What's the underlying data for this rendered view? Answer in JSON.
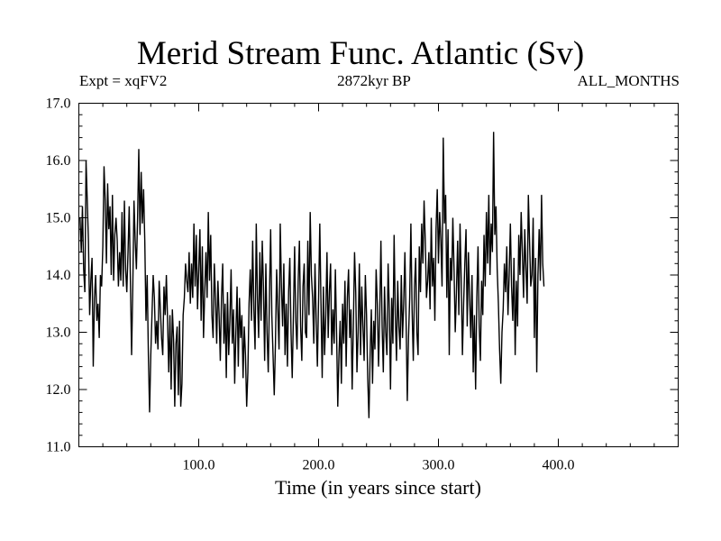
{
  "chart_data": {
    "type": "line",
    "title": "Merid Stream Func. Atlantic (Sv)",
    "subtitle_left": "Expt = xqFV2",
    "subtitle_center": "2872kyr BP",
    "subtitle_right": "ALL_MONTHS",
    "xlabel": "Time (in years since start)",
    "ylabel": "",
    "xlim": [
      0,
      500
    ],
    "ylim": [
      11.0,
      17.0
    ],
    "x_ticks": [
      100,
      200,
      300,
      400
    ],
    "x_tick_labels": [
      "100.0",
      "200.0",
      "300.0",
      "400.0"
    ],
    "y_ticks": [
      11,
      12,
      13,
      14,
      15,
      16,
      17
    ],
    "y_tick_labels": [
      "11.0",
      "12.0",
      "13.0",
      "14.0",
      "15.0",
      "16.0",
      "17.0"
    ],
    "grid": false,
    "series": [
      {
        "name": "Merid Stream Func. Atlantic",
        "color": "#000000",
        "x_start": 1,
        "x_step": 1,
        "values": [
          15.0,
          14.4,
          15.2,
          14.1,
          13.7,
          16.0,
          15.3,
          14.6,
          13.3,
          13.9,
          14.3,
          12.4,
          13.6,
          14.0,
          13.2,
          13.5,
          12.9,
          14.0,
          13.8,
          14.5,
          15.9,
          15.3,
          14.2,
          15.6,
          14.8,
          15.2,
          14.0,
          15.4,
          13.9,
          14.7,
          15.0,
          14.6,
          13.8,
          14.4,
          13.9,
          15.1,
          13.8,
          15.3,
          14.1,
          13.7,
          14.4,
          15.2,
          13.9,
          12.6,
          13.8,
          15.3,
          14.6,
          14.1,
          15.0,
          16.2,
          14.7,
          15.8,
          14.9,
          15.5,
          14.6,
          13.2,
          14.0,
          12.6,
          11.6,
          12.6,
          13.3,
          14.0,
          13.6,
          12.8,
          13.2,
          12.7,
          13.9,
          13.4,
          12.9,
          12.6,
          13.8,
          13.3,
          14.0,
          13.2,
          12.3,
          13.3,
          12.0,
          13.4,
          12.9,
          11.7,
          12.8,
          13.1,
          11.9,
          13.2,
          11.7,
          12.1,
          13.3,
          13.6,
          14.2,
          13.9,
          13.7,
          14.4,
          13.5,
          14.2,
          13.6,
          14.9,
          13.8,
          14.7,
          13.4,
          14.1,
          14.8,
          13.2,
          14.5,
          12.9,
          13.7,
          14.4,
          13.6,
          15.1,
          13.9,
          14.7,
          13.3,
          12.9,
          14.2,
          13.6,
          12.8,
          13.9,
          13.3,
          12.5,
          13.6,
          14.2,
          12.8,
          13.5,
          12.2,
          13.7,
          12.6,
          13.2,
          14.1,
          12.8,
          13.4,
          12.1,
          13.0,
          13.8,
          12.4,
          13.6,
          12.9,
          13.3,
          12.2,
          13.1,
          12.6,
          11.7,
          12.3,
          13.5,
          14.1,
          13.2,
          14.6,
          13.4,
          12.7,
          14.9,
          13.6,
          12.9,
          14.4,
          13.2,
          14.6,
          13.8,
          12.5,
          14.2,
          13.0,
          12.3,
          13.6,
          14.8,
          13.3,
          12.6,
          11.9,
          12.8,
          14.1,
          13.4,
          12.7,
          14.9,
          13.8,
          13.1,
          14.2,
          12.6,
          13.5,
          12.4,
          13.7,
          14.3,
          13.0,
          12.2,
          13.3,
          14.5,
          13.2,
          12.7,
          13.9,
          14.6,
          13.1,
          12.5,
          13.8,
          14.2,
          13.0,
          12.9,
          14.6,
          13.3,
          15.1,
          14.0,
          13.6,
          12.8,
          14.2,
          13.2,
          12.4,
          13.6,
          14.9,
          13.5,
          12.2,
          13.8,
          12.6,
          13.3,
          14.4,
          12.9,
          13.7,
          14.2,
          12.6,
          13.4,
          12.8,
          14.1,
          13.0,
          11.7,
          12.6,
          13.2,
          12.1,
          13.5,
          12.8,
          13.9,
          12.4,
          13.6,
          14.1,
          12.9,
          13.4,
          12.0,
          13.1,
          14.4,
          13.7,
          12.3,
          13.0,
          14.2,
          12.6,
          13.8,
          13.1,
          12.5,
          14.0,
          13.3,
          12.2,
          11.5,
          12.6,
          13.4,
          12.1,
          13.2,
          12.7,
          14.1,
          13.5,
          12.4,
          13.3,
          14.6,
          13.1,
          12.3,
          13.8,
          13.0,
          12.6,
          14.2,
          13.4,
          12.0,
          13.6,
          12.8,
          14.7,
          13.3,
          12.5,
          13.9,
          13.1,
          12.7,
          14.0,
          12.9,
          13.5,
          14.4,
          13.2,
          11.8,
          12.9,
          13.6,
          14.9,
          13.4,
          12.5,
          13.8,
          14.3,
          13.0,
          12.6,
          14.5,
          13.7,
          14.9,
          14.2,
          15.3,
          14.6,
          13.6,
          13.9,
          14.4,
          13.4,
          15.0,
          13.8,
          14.3,
          13.2,
          14.8,
          15.5,
          14.2,
          15.1,
          14.6,
          13.8,
          16.4,
          14.9,
          15.4,
          13.6,
          14.8,
          12.6,
          14.3,
          13.9,
          15.0,
          14.1,
          13.0,
          13.7,
          14.6,
          13.3,
          14.9,
          13.9,
          12.6,
          13.5,
          14.2,
          14.8,
          13.1,
          14.4,
          13.6,
          12.9,
          14.0,
          12.3,
          13.3,
          12.0,
          13.6,
          14.5,
          13.1,
          12.5,
          13.9,
          13.3,
          14.7,
          13.8,
          15.1,
          14.2,
          15.4,
          14.0,
          14.9,
          14.4,
          16.5,
          14.7,
          15.2,
          14.1,
          13.5,
          12.7,
          12.1,
          13.0,
          13.4,
          14.2,
          13.7,
          14.5,
          13.3,
          14.0,
          14.9,
          13.8,
          13.2,
          14.3,
          12.6,
          13.9,
          13.1,
          14.7,
          14.0,
          15.1,
          14.4,
          13.6,
          14.8,
          14.1,
          13.5,
          15.4,
          14.6,
          13.8,
          14.0,
          15.0,
          12.9,
          14.3,
          12.3,
          14.0,
          14.8,
          13.9,
          15.4,
          14.2,
          13.8
        ]
      }
    ]
  }
}
